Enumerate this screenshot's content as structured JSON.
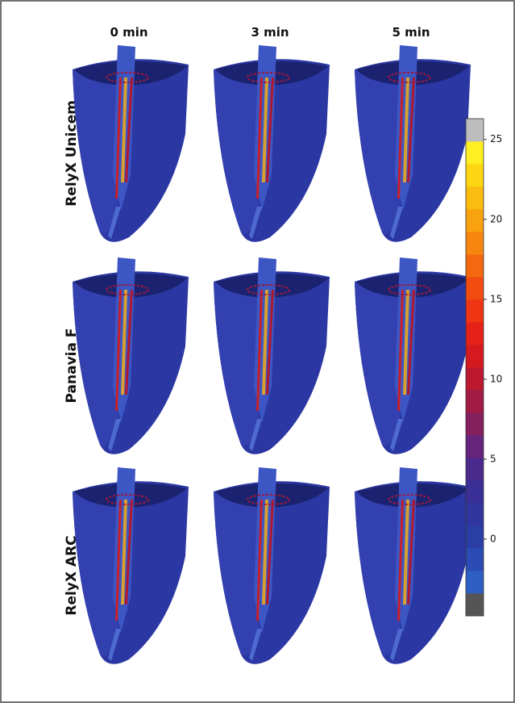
{
  "columns": [
    "0 min",
    "3 min",
    "5 min"
  ],
  "rows": [
    "RelyX Unicem",
    "Panavia F",
    "RelyX ARC"
  ],
  "colorbar": {
    "lim": [
      -4.8,
      26.3
    ],
    "ticks": [
      0,
      5,
      10,
      15,
      20,
      25
    ],
    "colors": [
      "#555555",
      "#2f5ec4",
      "#2a4cb4",
      "#2a3ea6",
      "#30369e",
      "#3a2f96",
      "#4a2a8c",
      "#66247a",
      "#84205e",
      "#a01c44",
      "#bc1830",
      "#d41a1e",
      "#e62218",
      "#ef3614",
      "#f24c10",
      "#f46810",
      "#f68610",
      "#f8a210",
      "#fabc10",
      "#fcd612",
      "#ffee22",
      "#bdbdbd"
    ]
  }
}
